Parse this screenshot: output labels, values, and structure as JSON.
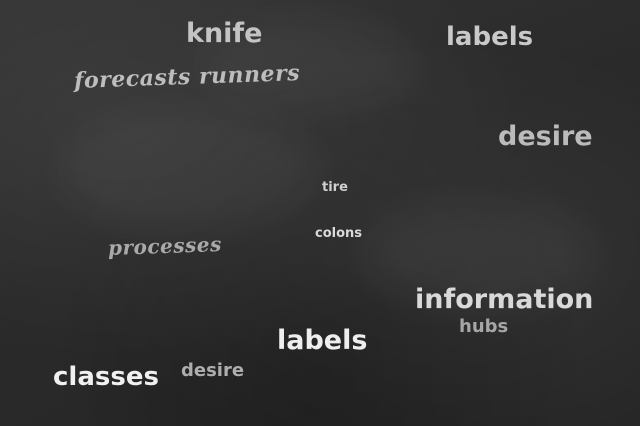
{
  "words": {
    "knife": "knife",
    "labels_top": "labels",
    "forecasts_runners": "forecasts runners",
    "desire_right": "desire",
    "tire": "tire",
    "colons": "colons",
    "processes": "processes",
    "information": "information",
    "hubs": "hubs",
    "labels_mid": "labels",
    "classes": "classes",
    "desire_bottom": "desire"
  },
  "colors": {
    "board": "#2c2c2c",
    "chalk_bright": "#f0f0f0",
    "chalk_dim": "#a9a9a9"
  }
}
